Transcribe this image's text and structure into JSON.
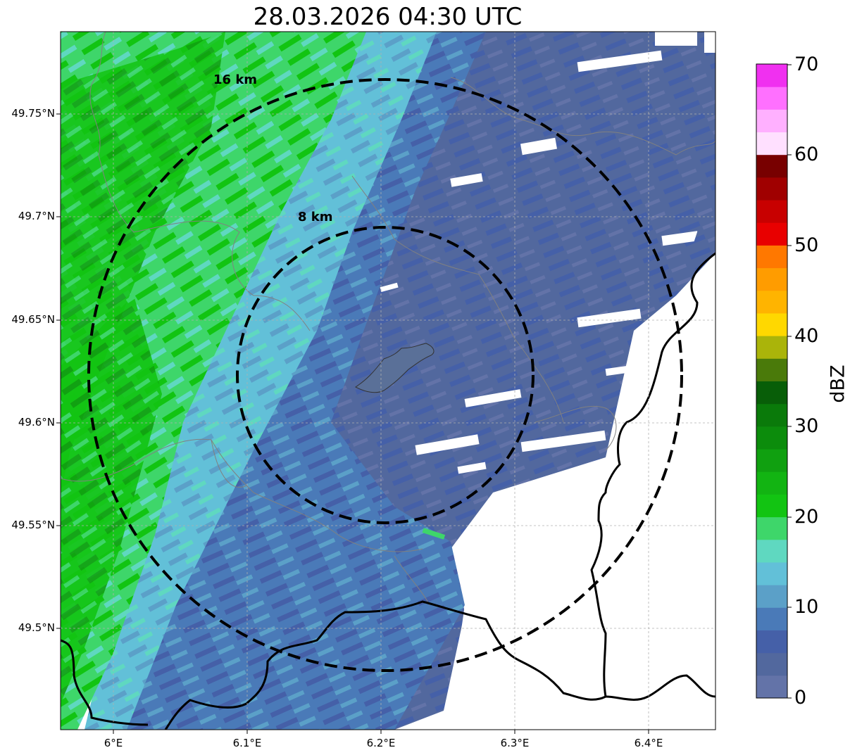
{
  "title": "28.03.2026 04:30 UTC",
  "map": {
    "lat_ticks": [
      "49.75°N",
      "49.7°N",
      "49.65°N",
      "49.6°N",
      "49.55°N",
      "49.5°N"
    ],
    "lon_ticks": [
      "6°E",
      "6.1°E",
      "6.2°E",
      "6.3°E",
      "6.4°E"
    ],
    "range_rings": [
      {
        "label": "16 km",
        "radius_km": 16
      },
      {
        "label": "8 km",
        "radius_km": 8
      }
    ],
    "gridlines": true,
    "dominant_echo": "stratiform precipitation band, strongest in the west/northwest",
    "palette_regions": {
      "strong": "#12c412",
      "moderate": "#3ed66a",
      "light_cyan": "#60c0d8",
      "light_blue": "#5a9ec8",
      "weak": "#4a65a8"
    }
  },
  "colorbar": {
    "label": "dBZ",
    "ticks": [
      "0",
      "10",
      "20",
      "30",
      "40",
      "50",
      "60",
      "70"
    ],
    "min": 0,
    "max": 70,
    "colors": [
      "#6373a8",
      "#52689e",
      "#4560a8",
      "#4a7ab8",
      "#5ba0c8",
      "#62c0d8",
      "#5fd8c0",
      "#3ed66a",
      "#12c412",
      "#12b412",
      "#10a010",
      "#0c8c0c",
      "#0a7a0a",
      "#085e08",
      "#4a7a0a",
      "#aab40a",
      "#ffd800",
      "#ffb400",
      "#ff9c00",
      "#ff7800",
      "#e80000",
      "#c80000",
      "#a00000",
      "#780000",
      "#ffe0ff",
      "#ffb0ff",
      "#ff70ff",
      "#f030f0"
    ]
  }
}
